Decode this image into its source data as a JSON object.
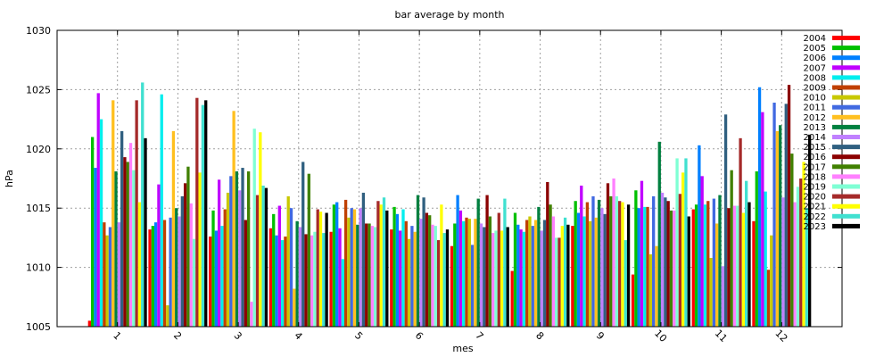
{
  "chart_data": {
    "type": "bar",
    "title": "bar average by month",
    "xlabel": "mes",
    "ylabel": "hPa",
    "ylim": [
      1005,
      1030
    ],
    "yticks": [
      1005,
      1010,
      1015,
      1020,
      1025,
      1030
    ],
    "grid": true,
    "legend_position": "top-right",
    "categories": [
      "1",
      "2",
      "3",
      "4",
      "5",
      "6",
      "7",
      "8",
      "9",
      "10",
      "11",
      "12"
    ],
    "series": [
      {
        "name": "2004",
        "color": "#ff0000",
        "values": [
          1005.5,
          1013.2,
          1012.6,
          1013.3,
          1013.0,
          1013.2,
          1011.8,
          1009.7,
          1013.5,
          1009.4,
          1014.9,
          1013.9
        ]
      },
      {
        "name": "2005",
        "color": "#00c000",
        "values": [
          1021.0,
          1013.5,
          1014.8,
          1014.5,
          1015.3,
          1015.1,
          1013.7,
          1014.6,
          1015.6,
          1016.5,
          1015.3,
          1018.1
        ]
      },
      {
        "name": "2006",
        "color": "#0080ff",
        "values": [
          1018.4,
          1013.8,
          1013.1,
          1012.7,
          1015.5,
          1014.5,
          1016.1,
          1013.6,
          1014.6,
          1015.0,
          1020.3,
          1025.2
        ]
      },
      {
        "name": "2007",
        "color": "#c000ff",
        "values": [
          1024.7,
          1017.0,
          1017.4,
          1015.2,
          1013.3,
          1013.1,
          1014.8,
          1013.2,
          1016.9,
          1017.3,
          1017.7,
          1023.1
        ]
      },
      {
        "name": "2008",
        "color": "#00eeee",
        "values": [
          1022.5,
          1024.6,
          1013.5,
          1012.3,
          1010.7,
          1014.9,
          1013.9,
          1013.0,
          1014.3,
          1015.1,
          1015.3,
          1016.4
        ]
      },
      {
        "name": "2009",
        "color": "#c04000",
        "values": [
          1013.8,
          1014.0,
          1014.9,
          1012.6,
          1015.7,
          1013.9,
          1014.2,
          1014.0,
          1015.5,
          1015.1,
          1015.6,
          1009.8
        ]
      },
      {
        "name": "2010",
        "color": "#c8c800",
        "values": [
          1012.7,
          1006.8,
          1016.3,
          1016.0,
          1014.2,
          1012.4,
          1014.1,
          1014.3,
          1013.9,
          1011.1,
          1010.8,
          1012.7
        ]
      },
      {
        "name": "2011",
        "color": "#4169e1",
        "values": [
          1013.4,
          1014.2,
          1017.7,
          1015.0,
          1015.0,
          1013.5,
          1011.9,
          1013.5,
          1016.0,
          1016.0,
          1015.8,
          1023.9
        ]
      },
      {
        "name": "2012",
        "color": "#ffc020",
        "values": [
          1024.1,
          1021.5,
          1023.2,
          1008.2,
          1014.9,
          1013.0,
          1014.1,
          1014.0,
          1014.2,
          1011.8,
          1013.7,
          1021.5
        ]
      },
      {
        "name": "2013",
        "color": "#008040",
        "values": [
          1018.1,
          1015.0,
          1018.1,
          1013.9,
          1013.6,
          1016.1,
          1015.8,
          1015.1,
          1015.7,
          1020.6,
          1016.1,
          1022.0
        ]
      },
      {
        "name": "2014",
        "color": "#c080ff",
        "values": [
          1013.8,
          1014.3,
          1016.5,
          1013.4,
          1015.0,
          1014.1,
          1013.7,
          1013.1,
          1015.0,
          1016.3,
          1010.1,
          1015.9
        ]
      },
      {
        "name": "2015",
        "color": "#306080",
        "values": [
          1021.5,
          1016.0,
          1018.4,
          1018.9,
          1016.3,
          1015.9,
          1013.4,
          1014.0,
          1014.5,
          1015.9,
          1022.9,
          1023.8
        ]
      },
      {
        "name": "2016",
        "color": "#8b0000",
        "values": [
          1019.3,
          1017.1,
          1014.0,
          1012.8,
          1013.7,
          1014.6,
          1016.1,
          1017.2,
          1017.1,
          1015.6,
          1015.0,
          1025.4
        ]
      },
      {
        "name": "2017",
        "color": "#408000",
        "values": [
          1018.9,
          1018.5,
          1018.1,
          1017.9,
          1013.7,
          1014.4,
          1014.3,
          1015.3,
          1016.0,
          1014.8,
          1018.2,
          1019.6
        ]
      },
      {
        "name": "2018",
        "color": "#ff80ff",
        "values": [
          1020.5,
          1015.4,
          1007.1,
          1012.7,
          1013.5,
          1013.6,
          1012.9,
          1014.3,
          1017.5,
          1014.8,
          1015.2,
          1015.5
        ]
      },
      {
        "name": "2019",
        "color": "#7fffd4",
        "values": [
          1018.2,
          1012.4,
          1021.7,
          1013.0,
          1013.4,
          1013.5,
          1013.1,
          1012.5,
          1016.0,
          1019.2,
          1015.2,
          1016.8
        ]
      },
      {
        "name": "2020",
        "color": "#a52a2a",
        "values": [
          1024.1,
          1024.3,
          1016.1,
          1014.9,
          1015.6,
          1012.3,
          1014.6,
          1012.5,
          1015.6,
          1016.2,
          1020.9,
          1017.5
        ]
      },
      {
        "name": "2021",
        "color": "#ffff00",
        "values": [
          1015.5,
          1018.0,
          1021.4,
          1014.7,
          1015.3,
          1015.3,
          1013.1,
          1013.5,
          1015.5,
          1018.0,
          1014.6,
          1018.9
        ]
      },
      {
        "name": "2022",
        "color": "#40e0d0",
        "values": [
          1025.6,
          1023.7,
          1016.9,
          1012.9,
          1015.9,
          1012.9,
          1015.8,
          1014.2,
          1012.3,
          1019.2,
          1017.3,
          1015.0
        ]
      },
      {
        "name": "2023",
        "color": "#000000",
        "values": [
          1020.9,
          1024.1,
          1016.7,
          1014.6,
          1014.8,
          1013.2,
          1013.4,
          1013.6,
          1015.3,
          1014.3,
          1015.5,
          1021.2
        ]
      }
    ]
  }
}
